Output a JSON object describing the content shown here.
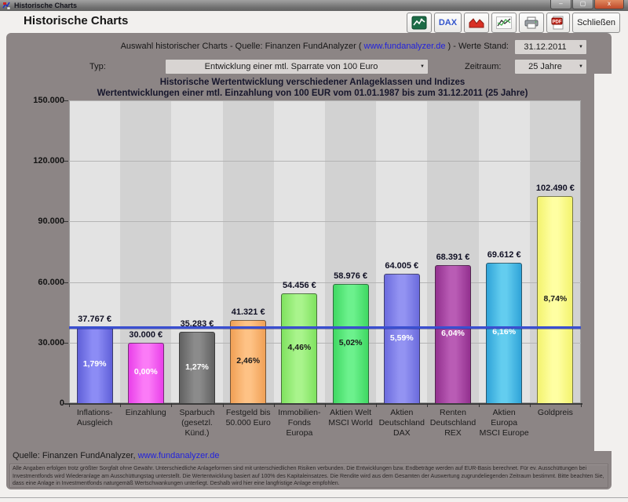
{
  "window": {
    "title": "Historische Charts",
    "controls": {
      "minimize": "–",
      "maximize": "▢",
      "close": "x"
    }
  },
  "header": {
    "title": "Historische Charts",
    "toolbar": {
      "dax_label": "DAX",
      "close_label": "Schließen"
    }
  },
  "controls": {
    "source_prefix": "Auswahl historischer Charts - Quelle: Finanzen FundAnalyzer ( ",
    "source_link": "www.fundanalyzer.de",
    "source_suffix": " ) - Werte Stand:",
    "date_value": "31.12.2011",
    "typ_label": "Typ:",
    "typ_value": "Entwicklung einer mtl. Sparrate von 100 Euro",
    "zeitraum_label": "Zeitraum:",
    "zeitraum_value": "25 Jahre"
  },
  "chart_data": {
    "type": "bar",
    "title": "Historische Wertentwicklung verschiedener Anlageklassen und Indizes",
    "subtitle": "Wertentwicklungen einer mtl. Einzahlung von 100 EUR vom 01.01.1987 bis zum 31.12.2011 (25 Jahre)",
    "ylim": [
      0,
      150000
    ],
    "ytick_values": [
      0,
      30000,
      60000,
      90000,
      120000,
      150000
    ],
    "ytick_labels": [
      "0",
      "30.000",
      "60.000",
      "90.000",
      "120.000",
      "150.000"
    ],
    "grid": true,
    "reference_line_value": 37767,
    "reference_line_color": "#3a4fd0",
    "categories": [
      "Inflations-\nAusgleich",
      "Einzahlung",
      "Sparbuch\n(gesetzl.\nKünd.)",
      "Festgeld bis\n50.000 Euro",
      "Immobilien-\nFonds Europa",
      "Aktien Welt\nMSCI World",
      "Aktien\nDeutschland\nDAX",
      "Renten\nDeutschland\nREX",
      "Aktien Europa\nMSCI Europe",
      "Goldpreis"
    ],
    "values": [
      37767,
      30000,
      35283,
      41321,
      54456,
      58976,
      64005,
      68391,
      69612,
      102490
    ],
    "value_labels": [
      "37.767 €",
      "30.000 €",
      "35.283 €",
      "41.321 €",
      "54.456 €",
      "58.976 €",
      "64.005 €",
      "68.391 €",
      "69.612 €",
      "102.490 €"
    ],
    "pct_labels": [
      "1,79%",
      "0,00%",
      "1,27%",
      "2,46%",
      "4,46%",
      "5,02%",
      "5,59%",
      "6,04%",
      "6,16%",
      "8,74%"
    ],
    "bar_colors": [
      {
        "edge": "#5f5fd8",
        "center": "#8c8cf5"
      },
      {
        "edge": "#e93fe9",
        "center": "#fb7bf7"
      },
      {
        "edge": "#616161",
        "center": "#8b8b8b"
      },
      {
        "edge": "#f0a055",
        "center": "#fec285"
      },
      {
        "edge": "#7fe25f",
        "center": "#a9f48c"
      },
      {
        "edge": "#3fd862",
        "center": "#6cf18d"
      },
      {
        "edge": "#6b6bdd",
        "center": "#9393f2"
      },
      {
        "edge": "#93308f",
        "center": "#b95cb5"
      },
      {
        "edge": "#2fa3d8",
        "center": "#63cdef"
      },
      {
        "edge": "#f3f36e",
        "center": "#ffffa2"
      }
    ],
    "pct_text_colors": [
      "#ffffff",
      "#ffffff",
      "#ffffff",
      "#1a1a1a",
      "#1a1a1a",
      "#1a1a1a",
      "#ffffff",
      "#ffffff",
      "#ffffff",
      "#1a1a1a"
    ],
    "stripe_colors": [
      "#e3e3e3",
      "#d2d2d2"
    ]
  },
  "footer": {
    "source_prefix": "Quelle: Finanzen FundAnalyzer,  ",
    "source_link": "www.fundanalyzer.de",
    "disclaimer_lines": [
      "Alle Angaben erfolgen trotz größter Sorgfalt ohne Gewähr. Unterschiedliche Anlageformen sind mit unterschiedlichen Risiken verbunden. Die Entwicklungen bzw. Endbeträge werden auf EUR-Basis berechnet. Für ev. Ausschüttungen bei",
      "Investmentfonds wird Wiederanlage am Ausschüttungstag unterstellt. Die Wertentwicklung basiert auf 100% des Kapitaleinsatzes. Die Rendite wird aus dem Gesamten der Auswertung zugrundeliegenden Zeitraum bestimmt. Bitte beachten Sie,",
      "dass eine Anlage in Investmentfonds naturgemäß Wertschwankungen unterliegt. Deshalb wird hier eine langfristige Anlage empfohlen."
    ]
  }
}
